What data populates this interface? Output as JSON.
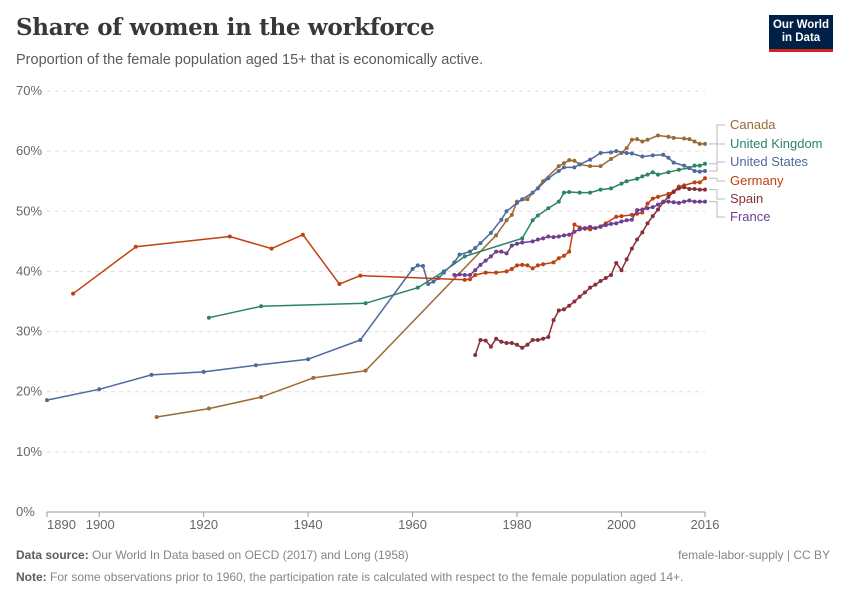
{
  "header": {
    "title": "Share of women in the workforce",
    "subtitle": "Proportion of the female population aged 15+ that is economically active.",
    "logo_line1": "Our World",
    "logo_line2": "in Data"
  },
  "footer": {
    "source_label": "Data source:",
    "source_text": " Our World In Data based on OECD (2017) and Long (1958)",
    "note_label": "Note:",
    "note_text": " For some observations prior to 1960, the participation rate is calculated with respect to the female population aged 14+.",
    "license": "female-labor-supply | CC BY"
  },
  "chart_data": {
    "type": "line",
    "title": "Share of women in the workforce",
    "subtitle": "Proportion of the female population aged 15+ that is economically active.",
    "xlim": [
      1890,
      2016
    ],
    "ylim": [
      0,
      70
    ],
    "x_ticks": [
      "1890",
      "1900",
      "1920",
      "1940",
      "1960",
      "1980",
      "2000",
      "2016"
    ],
    "x_tick_values": [
      1890,
      1900,
      1920,
      1940,
      1960,
      1980,
      2000,
      2016
    ],
    "y_ticks": [
      "0%",
      "10%",
      "20%",
      "30%",
      "40%",
      "50%",
      "60%",
      "70%"
    ],
    "y_tick_values": [
      0,
      10,
      20,
      30,
      40,
      50,
      60,
      70
    ],
    "grid": "horizontal dashed",
    "legend": "right (line-end labels)",
    "series": [
      {
        "name": "Canada",
        "color": "#9a6b36",
        "points": [
          [
            1911,
            15.8
          ],
          [
            1921,
            17.2
          ],
          [
            1931,
            19.1
          ],
          [
            1941,
            22.3
          ],
          [
            1951,
            23.5
          ],
          [
            1976,
            46.0
          ],
          [
            1978,
            48.5
          ],
          [
            1979,
            49.4
          ],
          [
            1980,
            51.6
          ],
          [
            1982,
            52.0
          ],
          [
            1985,
            55.0
          ],
          [
            1988,
            57.5
          ],
          [
            1989,
            58.0
          ],
          [
            1990,
            58.5
          ],
          [
            1991,
            58.4
          ],
          [
            1992,
            57.8
          ],
          [
            1994,
            57.5
          ],
          [
            1996,
            57.5
          ],
          [
            1998,
            58.7
          ],
          [
            2000,
            59.7
          ],
          [
            2001,
            60.5
          ],
          [
            2002,
            61.9
          ],
          [
            2003,
            62.0
          ],
          [
            2004,
            61.6
          ],
          [
            2005,
            61.9
          ],
          [
            2007,
            62.6
          ],
          [
            2009,
            62.4
          ],
          [
            2010,
            62.2
          ],
          [
            2012,
            62.1
          ],
          [
            2013,
            62.0
          ],
          [
            2014,
            61.6
          ],
          [
            2015,
            61.2
          ],
          [
            2016,
            61.2
          ]
        ]
      },
      {
        "name": "United Kingdom",
        "color": "#2b8465",
        "points": [
          [
            1921,
            32.3
          ],
          [
            1931,
            34.2
          ],
          [
            1951,
            34.7
          ],
          [
            1961,
            37.3
          ],
          [
            1966,
            40.0
          ],
          [
            1970,
            42.5
          ],
          [
            1981,
            45.5
          ],
          [
            1983,
            48.5
          ],
          [
            1984,
            49.3
          ],
          [
            1986,
            50.5
          ],
          [
            1988,
            51.6
          ],
          [
            1989,
            53.1
          ],
          [
            1990,
            53.2
          ],
          [
            1992,
            53.1
          ],
          [
            1994,
            53.1
          ],
          [
            1996,
            53.6
          ],
          [
            1998,
            53.8
          ],
          [
            2000,
            54.6
          ],
          [
            2001,
            55.0
          ],
          [
            2003,
            55.4
          ],
          [
            2004,
            55.8
          ],
          [
            2005,
            56.1
          ],
          [
            2006,
            56.5
          ],
          [
            2007,
            56.1
          ],
          [
            2009,
            56.5
          ],
          [
            2011,
            56.9
          ],
          [
            2013,
            57.2
          ],
          [
            2014,
            57.6
          ],
          [
            2015,
            57.6
          ],
          [
            2016,
            57.9
          ]
        ]
      },
      {
        "name": "United States",
        "color": "#4c6a9c",
        "points": [
          [
            1890,
            18.6
          ],
          [
            1900,
            20.4
          ],
          [
            1910,
            22.8
          ],
          [
            1920,
            23.3
          ],
          [
            1930,
            24.4
          ],
          [
            1940,
            25.4
          ],
          [
            1950,
            28.6
          ],
          [
            1960,
            40.4
          ],
          [
            1961,
            41.0
          ],
          [
            1962,
            40.9
          ],
          [
            1963,
            37.9
          ],
          [
            1964,
            38.3
          ],
          [
            1965,
            38.9
          ],
          [
            1966,
            39.8
          ],
          [
            1968,
            41.5
          ],
          [
            1969,
            42.8
          ],
          [
            1971,
            43.3
          ],
          [
            1972,
            43.9
          ],
          [
            1973,
            44.7
          ],
          [
            1975,
            46.4
          ],
          [
            1977,
            48.6
          ],
          [
            1978,
            50.0
          ],
          [
            1980,
            51.4
          ],
          [
            1981,
            52.0
          ],
          [
            1983,
            53.1
          ],
          [
            1984,
            53.8
          ],
          [
            1986,
            55.5
          ],
          [
            1988,
            56.7
          ],
          [
            1989,
            57.3
          ],
          [
            1991,
            57.3
          ],
          [
            1992,
            57.8
          ],
          [
            1994,
            58.6
          ],
          [
            1996,
            59.7
          ],
          [
            1998,
            59.8
          ],
          [
            1999,
            60.0
          ],
          [
            2001,
            59.7
          ],
          [
            2002,
            59.6
          ],
          [
            2004,
            59.1
          ],
          [
            2006,
            59.3
          ],
          [
            2008,
            59.4
          ],
          [
            2009,
            58.9
          ],
          [
            2010,
            58.1
          ],
          [
            2012,
            57.6
          ],
          [
            2013,
            57.2
          ],
          [
            2014,
            56.7
          ],
          [
            2015,
            56.6
          ],
          [
            2016,
            56.7
          ]
        ]
      },
      {
        "name": "Germany",
        "color": "#c0410f",
        "points": [
          [
            1895,
            36.3
          ],
          [
            1907,
            44.1
          ],
          [
            1925,
            45.8
          ],
          [
            1933,
            43.8
          ],
          [
            1939,
            46.1
          ],
          [
            1946,
            37.9
          ],
          [
            1950,
            39.3
          ],
          [
            1970,
            38.6
          ],
          [
            1971,
            38.7
          ],
          [
            1972,
            39.4
          ],
          [
            1974,
            39.8
          ],
          [
            1976,
            39.8
          ],
          [
            1978,
            40.0
          ],
          [
            1979,
            40.4
          ],
          [
            1980,
            41.0
          ],
          [
            1981,
            41.1
          ],
          [
            1982,
            41.0
          ],
          [
            1983,
            40.5
          ],
          [
            1984,
            41.0
          ],
          [
            1985,
            41.2
          ],
          [
            1987,
            41.5
          ],
          [
            1988,
            42.2
          ],
          [
            1989,
            42.6
          ],
          [
            1990,
            43.3
          ],
          [
            1991,
            47.8
          ],
          [
            1992,
            47.3
          ],
          [
            1993,
            47.1
          ],
          [
            1994,
            47.0
          ],
          [
            1996,
            47.5
          ],
          [
            1997,
            48.0
          ],
          [
            1999,
            49.1
          ],
          [
            2000,
            49.2
          ],
          [
            2002,
            49.4
          ],
          [
            2003,
            49.6
          ],
          [
            2004,
            49.8
          ],
          [
            2005,
            51.3
          ],
          [
            2006,
            52.1
          ],
          [
            2007,
            52.4
          ],
          [
            2009,
            52.9
          ],
          [
            2010,
            53.3
          ],
          [
            2011,
            54.1
          ],
          [
            2012,
            54.3
          ],
          [
            2014,
            54.8
          ],
          [
            2015,
            54.8
          ],
          [
            2016,
            55.5
          ]
        ]
      },
      {
        "name": "Spain",
        "color": "#883039",
        "points": [
          [
            1972,
            26.1
          ],
          [
            1973,
            28.6
          ],
          [
            1974,
            28.5
          ],
          [
            1975,
            27.5
          ],
          [
            1976,
            28.8
          ],
          [
            1977,
            28.3
          ],
          [
            1978,
            28.1
          ],
          [
            1979,
            28.1
          ],
          [
            1980,
            27.8
          ],
          [
            1981,
            27.3
          ],
          [
            1982,
            27.8
          ],
          [
            1983,
            28.6
          ],
          [
            1984,
            28.6
          ],
          [
            1985,
            28.8
          ],
          [
            1986,
            29.1
          ],
          [
            1987,
            31.9
          ],
          [
            1988,
            33.5
          ],
          [
            1989,
            33.7
          ],
          [
            1990,
            34.3
          ],
          [
            1991,
            35.0
          ],
          [
            1992,
            35.8
          ],
          [
            1993,
            36.5
          ],
          [
            1994,
            37.3
          ],
          [
            1995,
            37.8
          ],
          [
            1996,
            38.4
          ],
          [
            1997,
            38.9
          ],
          [
            1998,
            39.4
          ],
          [
            1999,
            41.4
          ],
          [
            2000,
            40.2
          ],
          [
            2001,
            42.0
          ],
          [
            2002,
            43.8
          ],
          [
            2003,
            45.3
          ],
          [
            2004,
            46.5
          ],
          [
            2005,
            48.0
          ],
          [
            2006,
            49.2
          ],
          [
            2007,
            50.3
          ],
          [
            2008,
            51.5
          ],
          [
            2009,
            52.4
          ],
          [
            2010,
            53.2
          ],
          [
            2011,
            53.8
          ],
          [
            2012,
            54.0
          ],
          [
            2013,
            53.7
          ],
          [
            2014,
            53.7
          ],
          [
            2015,
            53.6
          ],
          [
            2016,
            53.6
          ]
        ]
      },
      {
        "name": "France",
        "color": "#6d3e91",
        "points": [
          [
            1968,
            39.4
          ],
          [
            1969,
            39.5
          ],
          [
            1970,
            39.4
          ],
          [
            1971,
            39.4
          ],
          [
            1972,
            40.2
          ],
          [
            1973,
            41.1
          ],
          [
            1974,
            41.8
          ],
          [
            1975,
            42.5
          ],
          [
            1976,
            43.3
          ],
          [
            1977,
            43.3
          ],
          [
            1978,
            43.0
          ],
          [
            1979,
            44.3
          ],
          [
            1980,
            44.6
          ],
          [
            1981,
            44.8
          ],
          [
            1983,
            45.0
          ],
          [
            1984,
            45.3
          ],
          [
            1985,
            45.5
          ],
          [
            1986,
            45.8
          ],
          [
            1987,
            45.7
          ],
          [
            1988,
            45.8
          ],
          [
            1989,
            46.0
          ],
          [
            1990,
            46.1
          ],
          [
            1991,
            46.6
          ],
          [
            1992,
            47.0
          ],
          [
            1993,
            47.2
          ],
          [
            1994,
            47.4
          ],
          [
            1995,
            47.2
          ],
          [
            1996,
            47.4
          ],
          [
            1997,
            47.7
          ],
          [
            1998,
            47.9
          ],
          [
            1999,
            48.0
          ],
          [
            2000,
            48.3
          ],
          [
            2001,
            48.5
          ],
          [
            2002,
            48.6
          ],
          [
            2003,
            50.2
          ],
          [
            2004,
            50.3
          ],
          [
            2005,
            50.5
          ],
          [
            2006,
            50.7
          ],
          [
            2007,
            51.1
          ],
          [
            2008,
            51.6
          ],
          [
            2009,
            51.6
          ],
          [
            2010,
            51.5
          ],
          [
            2011,
            51.4
          ],
          [
            2012,
            51.6
          ],
          [
            2013,
            51.8
          ],
          [
            2014,
            51.6
          ],
          [
            2015,
            51.6
          ],
          [
            2016,
            51.6
          ]
        ]
      }
    ]
  }
}
